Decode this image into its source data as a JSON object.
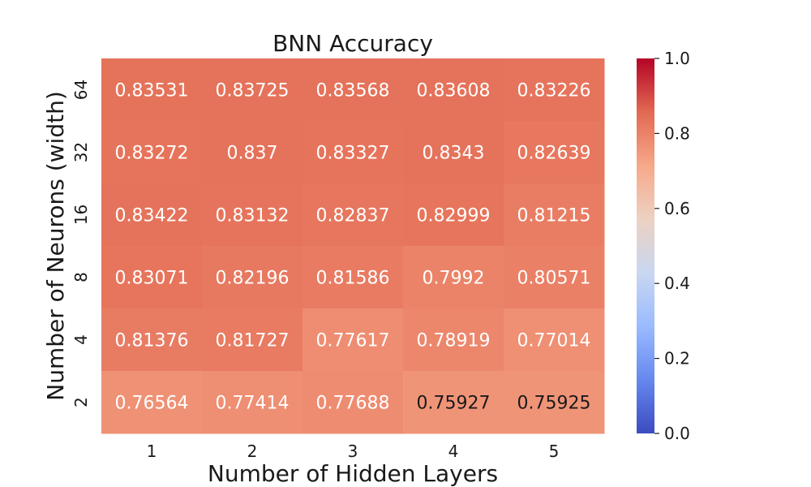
{
  "chart_data": {
    "type": "heatmap",
    "title": "BNN Accuracy",
    "xlabel": "Number of Hidden Layers",
    "ylabel": "Number of Neurons (width)",
    "x_categories": [
      "1",
      "2",
      "3",
      "4",
      "5"
    ],
    "y_categories": [
      "64",
      "32",
      "16",
      "8",
      "4",
      "2"
    ],
    "values": [
      [
        0.83531,
        0.83725,
        0.83568,
        0.83608,
        0.83226
      ],
      [
        0.83272,
        0.837,
        0.83327,
        0.8343,
        0.82639
      ],
      [
        0.83422,
        0.83132,
        0.82837,
        0.82999,
        0.81215
      ],
      [
        0.83071,
        0.82196,
        0.81586,
        0.7992,
        0.80571
      ],
      [
        0.81376,
        0.81727,
        0.77617,
        0.78919,
        0.77014
      ],
      [
        0.76564,
        0.77414,
        0.77688,
        0.75927,
        0.75925
      ]
    ],
    "cell_labels": [
      [
        "0.83531",
        "0.83725",
        "0.83568",
        "0.83608",
        "0.83226"
      ],
      [
        "0.83272",
        "0.837",
        "0.83327",
        "0.8343",
        "0.82639"
      ],
      [
        "0.83422",
        "0.83132",
        "0.82837",
        "0.82999",
        "0.81215"
      ],
      [
        "0.83071",
        "0.82196",
        "0.81586",
        "0.7992",
        "0.80571"
      ],
      [
        "0.81376",
        "0.81727",
        "0.77617",
        "0.78919",
        "0.77014"
      ],
      [
        "0.76564",
        "0.77414",
        "0.77688",
        "0.75927",
        "0.75925"
      ]
    ],
    "colorbar": {
      "range": [
        0.0,
        1.0
      ],
      "ticks": [
        "0.0",
        "0.2",
        "0.4",
        "0.6",
        "0.8",
        "1.0"
      ],
      "colormap": "coolwarm",
      "colors": [
        "#3b4cc0",
        "#6688ee",
        "#9abbff",
        "#c9d7f0",
        "#edd1c2",
        "#f7a889",
        "#e26952",
        "#b40426"
      ]
    },
    "label_colors": {
      "light": "#ffffff",
      "dark": "#1a1a1a"
    }
  }
}
